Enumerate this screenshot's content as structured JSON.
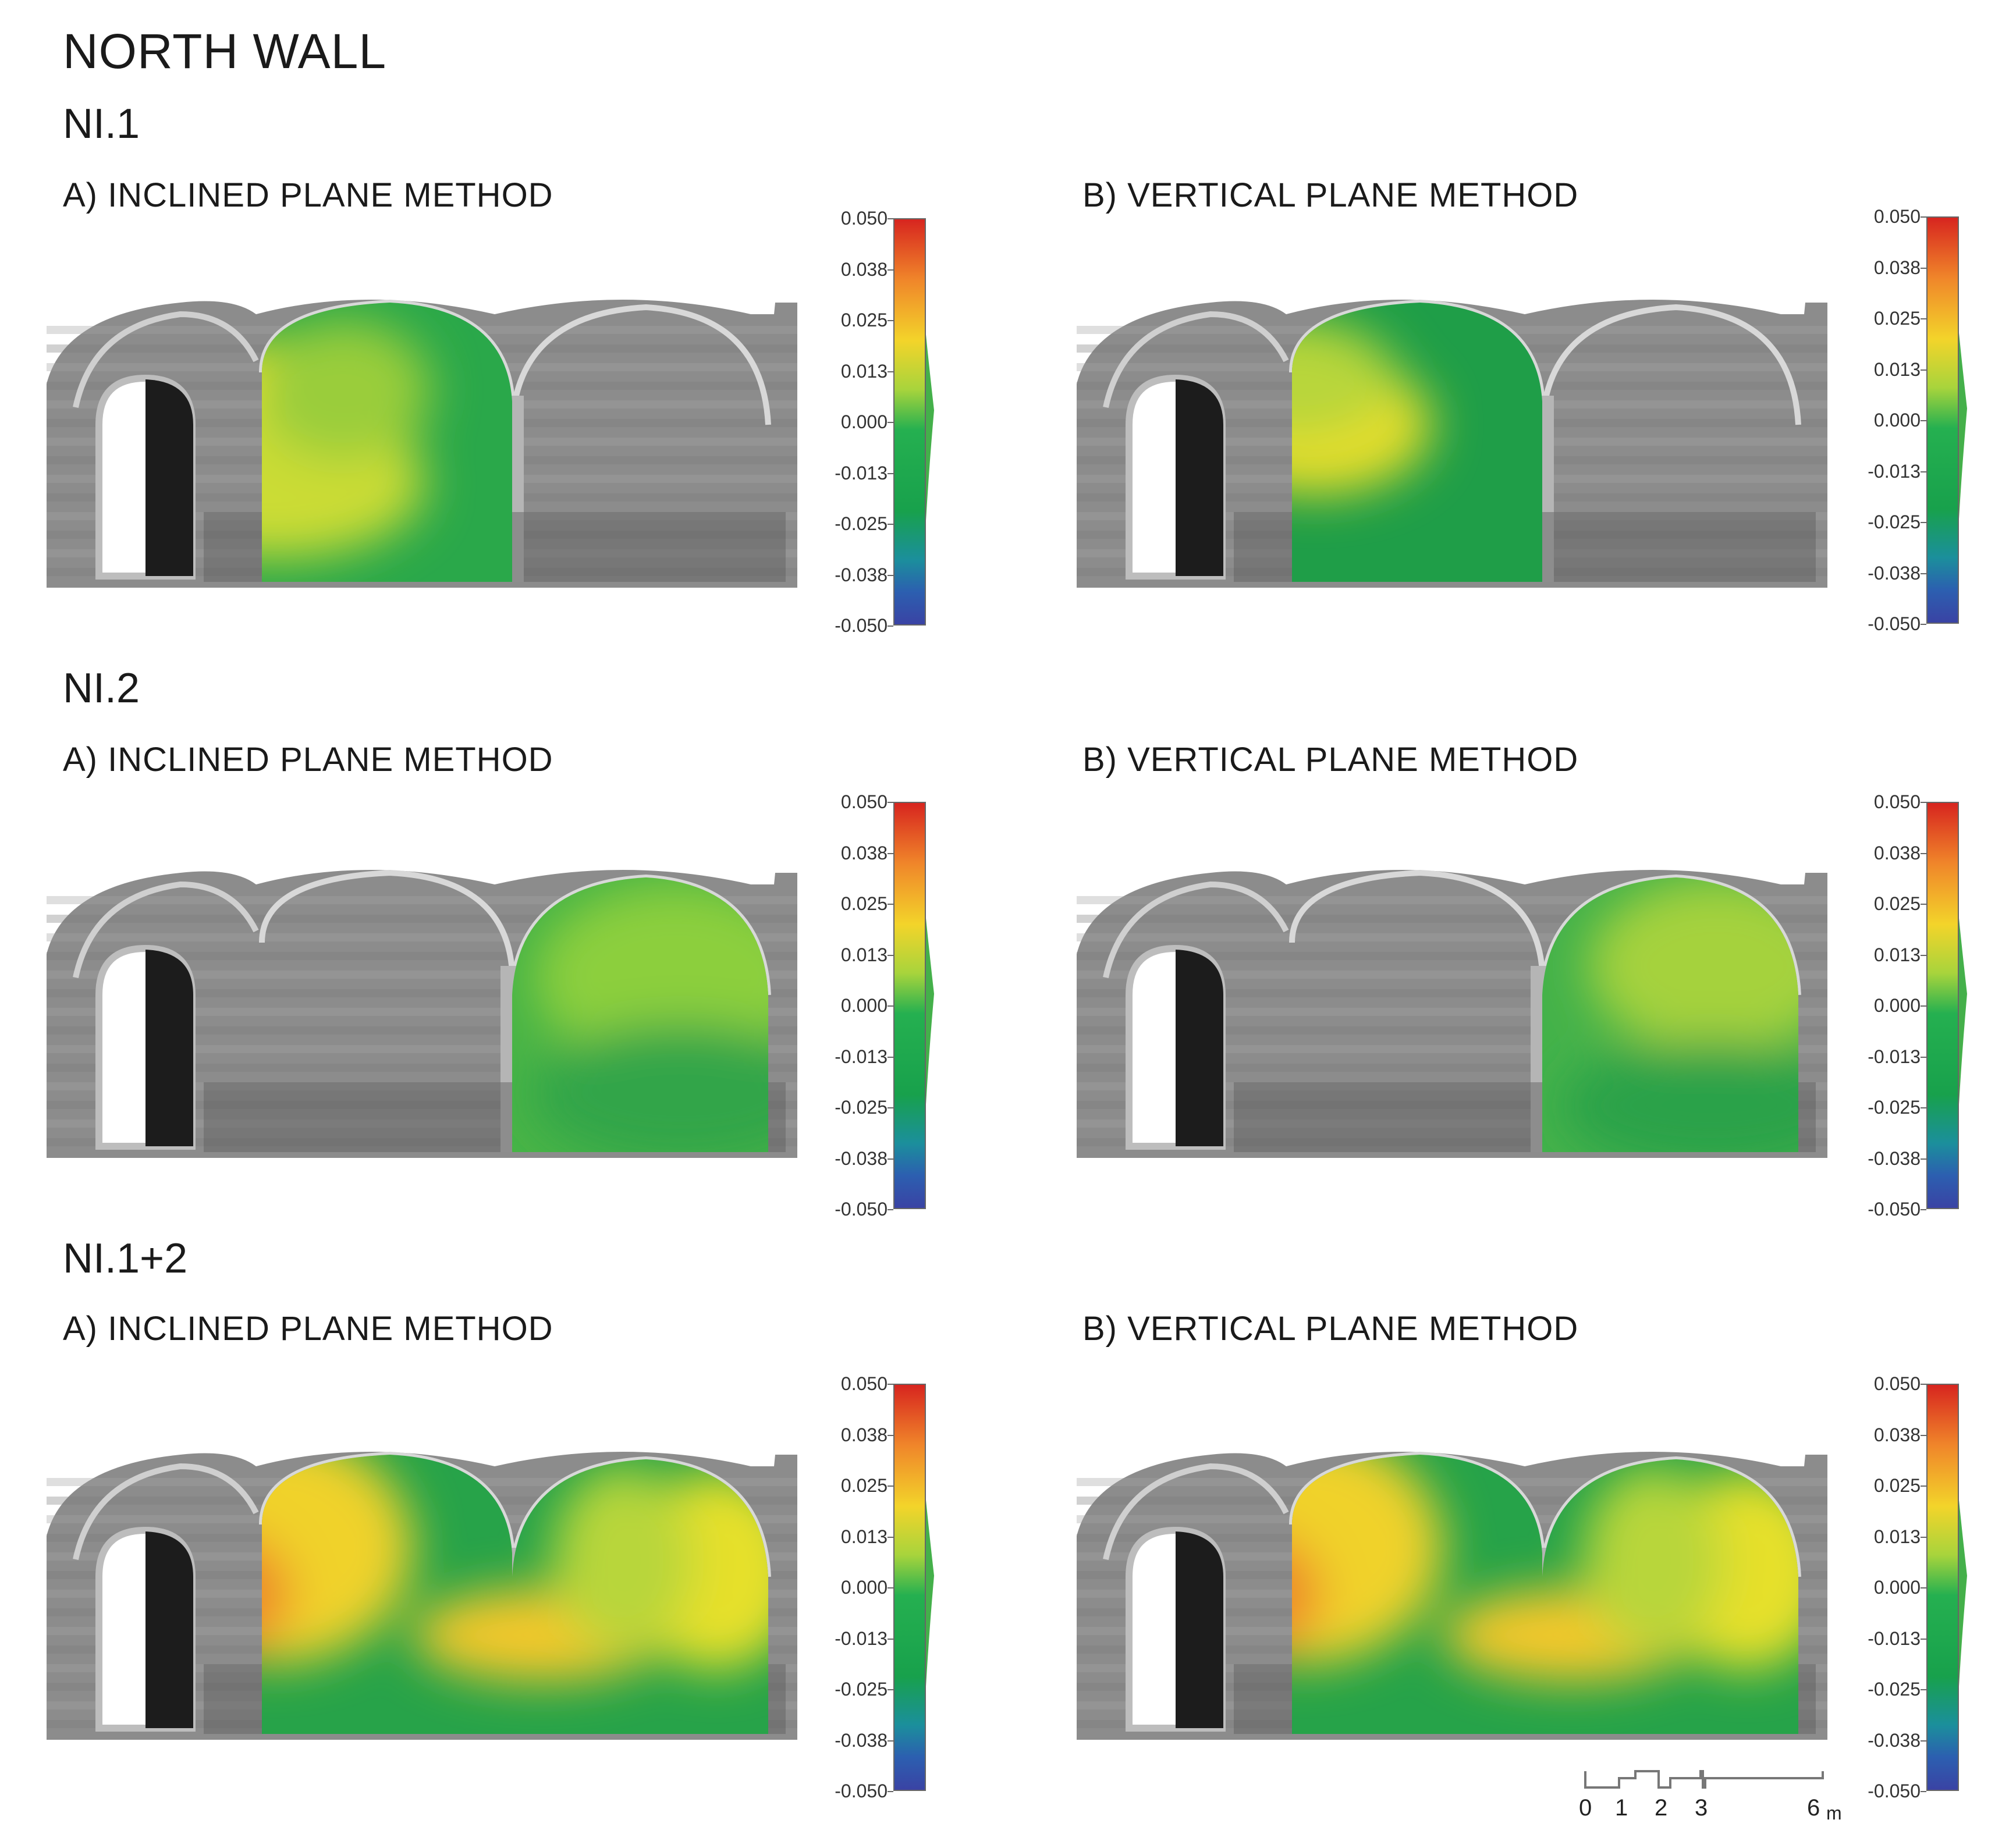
{
  "title": "NORTH WALL",
  "groups": [
    {
      "label": "NI.1",
      "method_a": "A) INCLINED PLANE METHOD",
      "method_b": "B) VERTICAL PLANE METHOD"
    },
    {
      "label": "NI.2",
      "method_a": "A) INCLINED PLANE METHOD",
      "method_b": "B) VERTICAL PLANE METHOD"
    },
    {
      "label": "NI.1+2",
      "method_a": "A) INCLINED PLANE METHOD",
      "method_b": "B) VERTICAL PLANE METHOD"
    }
  ],
  "colorbar": {
    "ticks": [
      "0.050",
      "0.038",
      "0.025",
      "0.013",
      "0.000",
      "-0.013",
      "-0.025",
      "-0.038",
      "-0.050"
    ],
    "colors": [
      "#d7251f",
      "#f0862a",
      "#f3d42a",
      "#25b050",
      "#3a43a4"
    ]
  },
  "scale_bar": {
    "ticks": [
      "0",
      "1",
      "2",
      "3",
      "6"
    ],
    "unit": "m"
  }
}
